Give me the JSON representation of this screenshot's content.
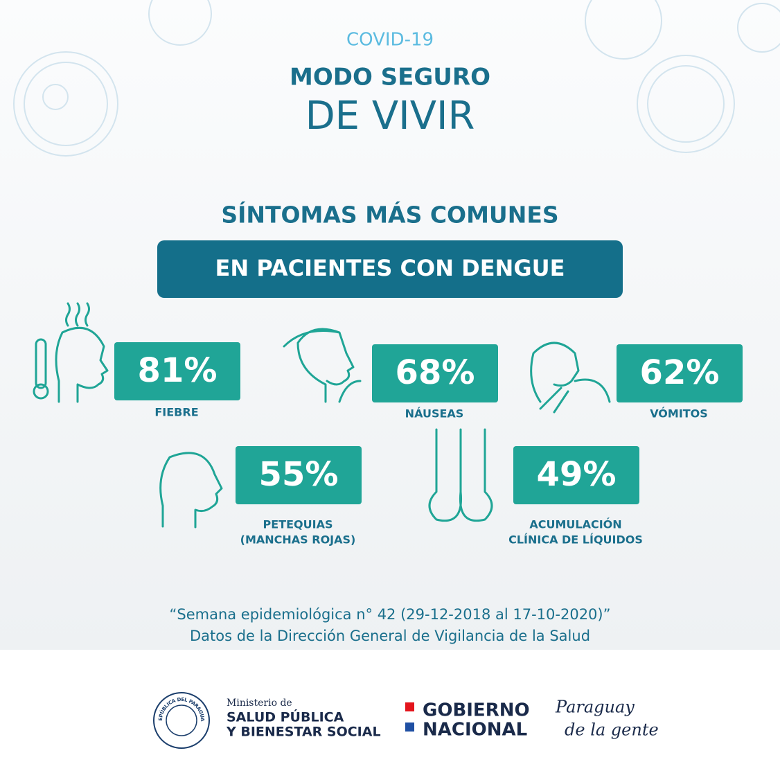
{
  "header": {
    "kicker": "COVID-19",
    "title_line1": "MODO SEGURO",
    "title_line2": "DE VIVIR"
  },
  "section": {
    "title": "SÍNTOMAS MÁS COMUNES",
    "banner": "EN PACIENTES CON DENGUE"
  },
  "symptoms": [
    {
      "value": "81%",
      "label": [
        "FIEBRE"
      ]
    },
    {
      "value": "68%",
      "label": [
        "NÁUSEAS"
      ]
    },
    {
      "value": "62%",
      "label": [
        "VÓMITOS"
      ]
    },
    {
      "value": "55%",
      "label": [
        "PETEQUIAS",
        "(MANCHAS ROJAS)"
      ]
    },
    {
      "value": "49%",
      "label": [
        "ACUMULACIÓN",
        "CLÍNICA DE LÍQUIDOS"
      ]
    }
  ],
  "source": [
    "“Semana epidemiológica n° 42 (29-12-2018 al 17-10-2020)”",
    "Datos de la Dirección General de Vigilancia de la Salud"
  ],
  "footer": {
    "seal_text": "REPÚBLICA DEL PARAGUAY",
    "ministry": [
      "Ministerio de",
      "SALUD PÚBLICA",
      "Y BIENESTAR SOCIAL"
    ],
    "government": [
      "GOBIERNO",
      "NACIONAL"
    ],
    "slogan": [
      "Paraguay",
      "de la gente"
    ]
  }
}
